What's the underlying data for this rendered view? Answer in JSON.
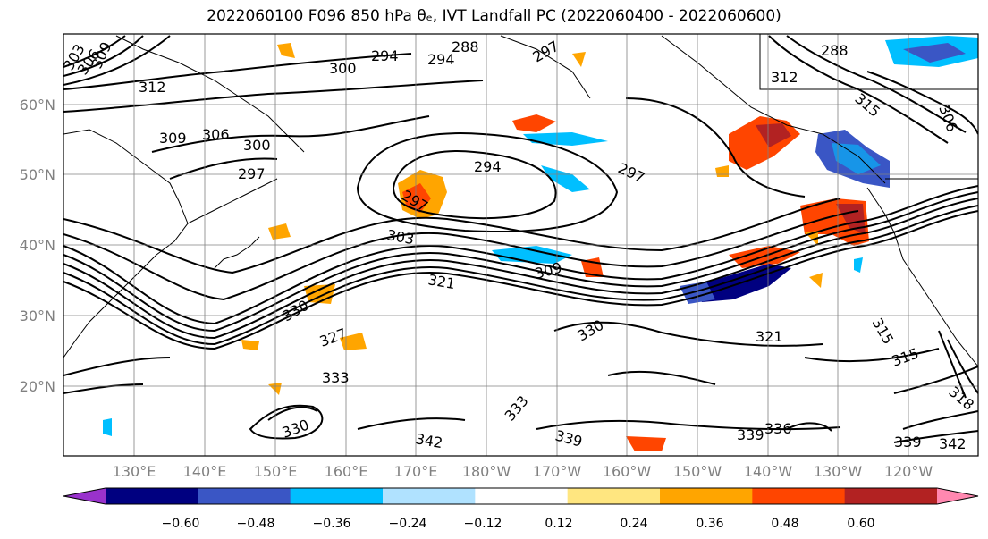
{
  "title_text": "2022060100 F096 850 hPa θₑ, IVT Landfall PC (2022060400 - 2022060600)",
  "lat_labels": [
    "60°N",
    "50°N",
    "40°N",
    "30°N",
    "20°N"
  ],
  "lon_labels": [
    "130°E",
    "140°E",
    "150°E",
    "160°E",
    "170°E",
    "180°W",
    "170°W",
    "160°W",
    "150°W",
    "140°W",
    "130°W",
    "120°W"
  ],
  "contour_labels": [
    "303",
    "306",
    "309",
    "312",
    "294",
    "294",
    "288",
    "297",
    "300",
    "288",
    "312",
    "315",
    "306",
    "309",
    "306",
    "300",
    "297",
    "294",
    "297",
    "297",
    "303",
    "309",
    "321",
    "330",
    "330",
    "327",
    "333",
    "321",
    "315",
    "315",
    "318",
    "333",
    "330",
    "342",
    "339",
    "339",
    "336",
    "339",
    "342"
  ],
  "colorbar": {
    "ticks": [
      "−0.60",
      "−0.48",
      "−0.36",
      "−0.24",
      "−0.12",
      "0.12",
      "0.24",
      "0.36",
      "0.48",
      "0.60"
    ],
    "colors": [
      "#9932cc",
      "#000080",
      "#3a56c5",
      "#00bfff",
      "#b0e2ff",
      "#ffffff",
      "#ffe680",
      "#ffa500",
      "#ff4500",
      "#b22222",
      "#ff88b0"
    ]
  }
}
